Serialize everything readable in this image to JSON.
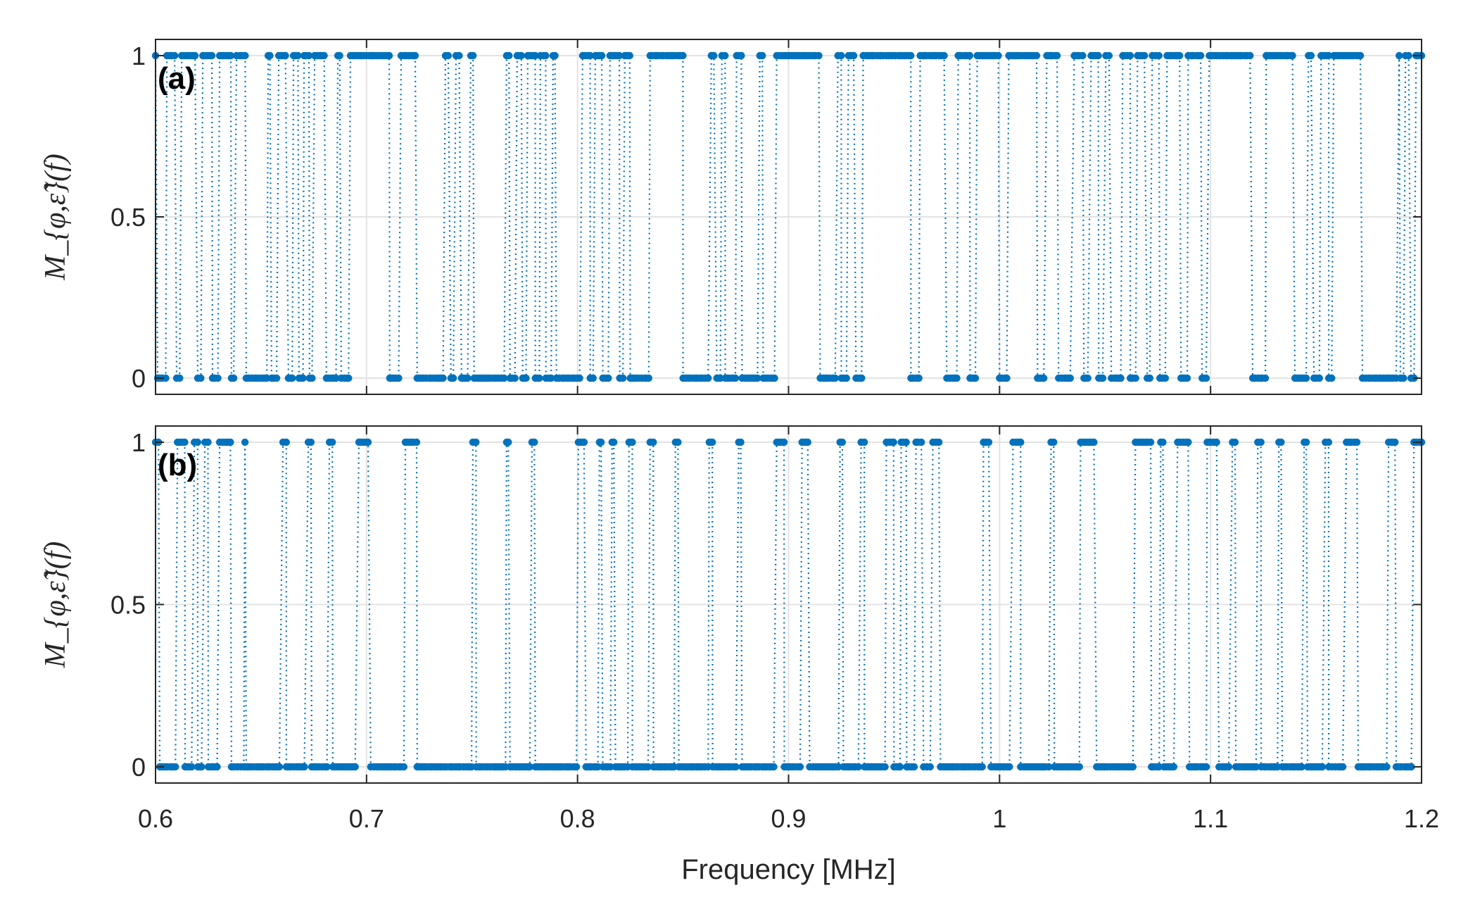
{
  "chart_data": {
    "type": "scatter",
    "colors": {
      "series": "#0072BD",
      "grid": "#e3e3e3",
      "axes": "#262626"
    },
    "xlim": [
      0.6,
      1.2
    ],
    "ylim": [
      0,
      1
    ],
    "x_ticks": [
      0.6,
      0.7,
      0.8,
      0.9,
      1,
      1.1,
      1.2
    ],
    "x_tick_labels": [
      "0.6",
      "0.7",
      "0.8",
      "0.9",
      "1",
      "1.1",
      "1.2"
    ],
    "y_ticks": [
      0,
      0.5,
      1
    ],
    "y_tick_labels": [
      "0",
      "0.5",
      "1"
    ],
    "xlabel": "Frequency [MHz]",
    "grid": true,
    "line_style": "dotted with dot markers",
    "panels": [
      {
        "label": "(a)",
        "ylabel": "M_{φ,ε̃}(f)",
        "zero_bands": [
          [
            0.601,
            0.605
          ],
          [
            0.61,
            0.612
          ],
          [
            0.62,
            0.622
          ],
          [
            0.627,
            0.63
          ],
          [
            0.636,
            0.638
          ],
          [
            0.643,
            0.653
          ],
          [
            0.655,
            0.658
          ],
          [
            0.663,
            0.665
          ],
          [
            0.668,
            0.67
          ],
          [
            0.673,
            0.675
          ],
          [
            0.681,
            0.686
          ],
          [
            0.688,
            0.692
          ],
          [
            0.711,
            0.716
          ],
          [
            0.724,
            0.737
          ],
          [
            0.74,
            0.742
          ],
          [
            0.745,
            0.749
          ],
          [
            0.751,
            0.766
          ],
          [
            0.768,
            0.771
          ],
          [
            0.774,
            0.776
          ],
          [
            0.78,
            0.782
          ],
          [
            0.785,
            0.788
          ],
          [
            0.79,
            0.802
          ],
          [
            0.806,
            0.808
          ],
          [
            0.812,
            0.815
          ],
          [
            0.82,
            0.822
          ],
          [
            0.825,
            0.834
          ],
          [
            0.85,
            0.863
          ],
          [
            0.866,
            0.868
          ],
          [
            0.87,
            0.875
          ],
          [
            0.878,
            0.886
          ],
          [
            0.888,
            0.894
          ],
          [
            0.915,
            0.923
          ],
          [
            0.925,
            0.928
          ],
          [
            0.932,
            0.935
          ],
          [
            0.958,
            0.962
          ],
          [
            0.975,
            0.98
          ],
          [
            0.986,
            0.989
          ],
          [
            1.0,
            1.004
          ],
          [
            1.018,
            1.022
          ],
          [
            1.028,
            1.035
          ],
          [
            1.04,
            1.043
          ],
          [
            1.047,
            1.05
          ],
          [
            1.053,
            1.058
          ],
          [
            1.062,
            1.065
          ],
          [
            1.07,
            1.072
          ],
          [
            1.076,
            1.079
          ],
          [
            1.086,
            1.089
          ],
          [
            1.096,
            1.099
          ],
          [
            1.12,
            1.126
          ],
          [
            1.14,
            1.146
          ],
          [
            1.149,
            1.152
          ],
          [
            1.156,
            1.158
          ],
          [
            1.172,
            1.189
          ],
          [
            1.19,
            1.192
          ],
          [
            1.195,
            1.197
          ]
        ]
      },
      {
        "label": "(b)",
        "ylabel": "M_{φ,ε̃}(f)",
        "zero_bands": [
          [
            0.602,
            0.61
          ],
          [
            0.614,
            0.618
          ],
          [
            0.62,
            0.623
          ],
          [
            0.625,
            0.63
          ],
          [
            0.636,
            0.642
          ],
          [
            0.643,
            0.66
          ],
          [
            0.662,
            0.672
          ],
          [
            0.674,
            0.682
          ],
          [
            0.684,
            0.696
          ],
          [
            0.702,
            0.718
          ],
          [
            0.724,
            0.75
          ],
          [
            0.752,
            0.766
          ],
          [
            0.768,
            0.778
          ],
          [
            0.78,
            0.8
          ],
          [
            0.804,
            0.81
          ],
          [
            0.812,
            0.816
          ],
          [
            0.818,
            0.824
          ],
          [
            0.826,
            0.834
          ],
          [
            0.836,
            0.846
          ],
          [
            0.848,
            0.862
          ],
          [
            0.864,
            0.876
          ],
          [
            0.878,
            0.894
          ],
          [
            0.898,
            0.906
          ],
          [
            0.91,
            0.924
          ],
          [
            0.926,
            0.934
          ],
          [
            0.936,
            0.946
          ],
          [
            0.95,
            0.953
          ],
          [
            0.956,
            0.96
          ],
          [
            0.964,
            0.968
          ],
          [
            0.972,
            0.992
          ],
          [
            0.996,
            1.006
          ],
          [
            1.01,
            1.024
          ],
          [
            1.026,
            1.038
          ],
          [
            1.046,
            1.064
          ],
          [
            1.072,
            1.076
          ],
          [
            1.078,
            1.084
          ],
          [
            1.09,
            1.098
          ],
          [
            1.104,
            1.11
          ],
          [
            1.112,
            1.122
          ],
          [
            1.124,
            1.132
          ],
          [
            1.134,
            1.144
          ],
          [
            1.146,
            1.154
          ],
          [
            1.156,
            1.164
          ],
          [
            1.17,
            1.184
          ],
          [
            1.188,
            1.196
          ]
        ]
      }
    ]
  }
}
